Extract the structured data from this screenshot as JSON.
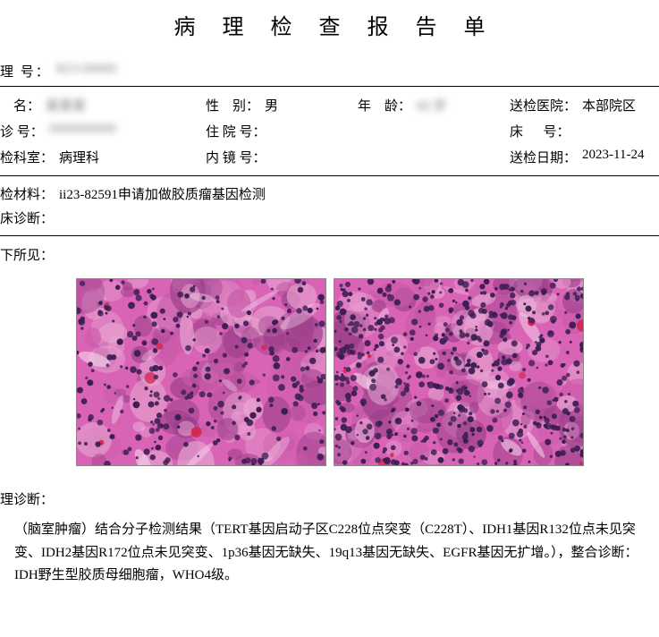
{
  "title": "病 理 检 查 报 告 单",
  "pathno": {
    "label": "理 号：",
    "value": "B23-00000"
  },
  "info": {
    "row1": {
      "name": {
        "label": "    名：",
        "value": "某某某"
      },
      "sex": {
        "label": "性    别：",
        "value": "男"
      },
      "age": {
        "label": "年    龄：",
        "value": "00 岁"
      },
      "hosp": {
        "label": "送检医院：",
        "value": "本部院区"
      }
    },
    "row2": {
      "outpno": {
        "label": "诊 号：",
        "value": "0000000000"
      },
      "inpno": {
        "label": "住 院 号：",
        "value": ""
      },
      "blank": {
        "label": "",
        "value": ""
      },
      "bedno": {
        "label": "床      号：",
        "value": ""
      }
    },
    "row3": {
      "dept": {
        "label": "检科室：",
        "value": "病理科"
      },
      "endo": {
        "label": "内 镜 号：",
        "value": ""
      },
      "blank": {
        "label": "",
        "value": ""
      },
      "sdate": {
        "label": "送检日期：",
        "value": "2023-11-24"
      }
    }
  },
  "material": {
    "label": "检材料：",
    "value": "ii23-82591申请加做胶质瘤基因检测"
  },
  "clindiag": {
    "label": "床诊断：",
    "value": ""
  },
  "findings_title": "下所见：",
  "hist_colors": {
    "bg": "#d964b6",
    "bg2": "#c85aa8",
    "dark": "#3a1d52",
    "mid": "#9b3f8a",
    "light": "#e8a8d2",
    "white": "#f5d8ed",
    "red": "#d32850"
  },
  "pathdiag": {
    "title": "理诊断：",
    "text": "（脑室肿瘤）结合分子检测结果（TERT基因启动子区C228位点突变（C228T）、IDH1基因R132位点未见突变、IDH2基因R172位点未见突变、1p36基因无缺失、19q13基因无缺失、EGFR基因无扩增。），整合诊断：IDH野生型胶质母细胞瘤，WHO4级。"
  }
}
